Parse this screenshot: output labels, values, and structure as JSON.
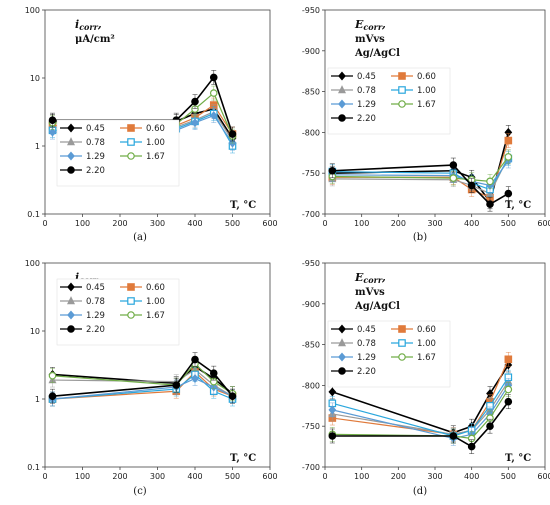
{
  "chart_data": [
    {
      "type": "line",
      "panel_label": "(a)",
      "y_label_lines": [
        "i",
        "corr",
        ",",
        "μA/cm²"
      ],
      "x_label": "T, °C",
      "y_scale": "log",
      "xlim": [
        0,
        600
      ],
      "ylim": [
        0.1,
        100
      ],
      "x_ticks": [
        "0",
        "100",
        "200",
        "300",
        "400",
        "500",
        "600"
      ],
      "y_ticks": [
        "0.1",
        "1",
        "10",
        "100"
      ],
      "legend_position": "bottom-center",
      "x": [
        20,
        350,
        400,
        450,
        500
      ],
      "series": [
        {
          "name": "0.45",
          "color": "#000000",
          "marker": "diamond",
          "values": [
            2.3,
            2.3,
            3.0,
            3.5,
            1.3
          ]
        },
        {
          "name": "0.60",
          "color": "#e07a3b",
          "marker": "square",
          "values": [
            2.0,
            2.0,
            2.6,
            4.0,
            1.5
          ]
        },
        {
          "name": "0.78",
          "color": "#9a9a9a",
          "marker": "triangle",
          "values": [
            1.9,
            1.9,
            2.4,
            3.2,
            1.2
          ]
        },
        {
          "name": "1.00",
          "color": "#2aa7dd",
          "marker": "square-open",
          "values": [
            1.7,
            1.8,
            2.3,
            3.0,
            1.0
          ]
        },
        {
          "name": "1.29",
          "color": "#5b9bd5",
          "marker": "diamond",
          "values": [
            1.6,
            1.7,
            2.2,
            2.8,
            1.1
          ]
        },
        {
          "name": "1.67",
          "color": "#70ad47",
          "marker": "circle-open",
          "values": [
            2.2,
            2.1,
            3.5,
            6.0,
            1.4
          ]
        },
        {
          "name": "2.20",
          "color": "#000000",
          "marker": "circle",
          "values": [
            2.4,
            2.4,
            4.5,
            10.2,
            1.5
          ]
        }
      ]
    },
    {
      "type": "line",
      "panel_label": "(b)",
      "y_label_lines": [
        "E",
        "corr",
        ",",
        "mVvs",
        "Ag/AgCl"
      ],
      "x_label": "T, °C",
      "y_scale": "linear-inverted",
      "xlim": [
        0,
        600
      ],
      "ylim": [
        -700,
        -950
      ],
      "x_ticks": [
        "0",
        "100",
        "200",
        "300",
        "400",
        "500",
        "600"
      ],
      "y_ticks": [
        "-950",
        "-900",
        "-850",
        "-800",
        "-750",
        "-700"
      ],
      "legend_position": "top-left",
      "x": [
        20,
        350,
        400,
        450,
        500
      ],
      "series": [
        {
          "name": "0.45",
          "color": "#000000",
          "marker": "diamond",
          "values": [
            -750,
            -753,
            -745,
            -715,
            -800
          ]
        },
        {
          "name": "0.60",
          "color": "#e07a3b",
          "marker": "square",
          "values": [
            -745,
            -745,
            -730,
            -720,
            -790
          ]
        },
        {
          "name": "0.78",
          "color": "#9a9a9a",
          "marker": "triangle",
          "values": [
            -743,
            -742,
            -735,
            -725,
            -770
          ]
        },
        {
          "name": "1.00",
          "color": "#2aa7dd",
          "marker": "square-open",
          "values": [
            -752,
            -750,
            -738,
            -730,
            -768
          ]
        },
        {
          "name": "1.29",
          "color": "#5b9bd5",
          "marker": "diamond",
          "values": [
            -748,
            -747,
            -740,
            -735,
            -765
          ]
        },
        {
          "name": "1.67",
          "color": "#70ad47",
          "marker": "circle-open",
          "values": [
            -746,
            -744,
            -742,
            -740,
            -770
          ]
        },
        {
          "name": "2.20",
          "color": "#000000",
          "marker": "circle",
          "values": [
            -753,
            -760,
            -735,
            -712,
            -725
          ]
        }
      ]
    },
    {
      "type": "line",
      "panel_label": "(c)",
      "y_label_lines": [
        "i",
        "corr",
        ",",
        "μA/cm²"
      ],
      "x_label": "T, °C",
      "y_scale": "log",
      "xlim": [
        0,
        600
      ],
      "ylim": [
        0.1,
        100
      ],
      "x_ticks": [
        "0",
        "100",
        "200",
        "300",
        "400",
        "500",
        "600"
      ],
      "y_ticks": [
        "0.1",
        "1",
        "10",
        "100"
      ],
      "legend_position": "top-center",
      "x": [
        20,
        350,
        400,
        450,
        500
      ],
      "series": [
        {
          "name": "0.45",
          "color": "#000000",
          "marker": "diamond",
          "values": [
            2.3,
            1.7,
            3.0,
            2.0,
            1.2
          ]
        },
        {
          "name": "0.60",
          "color": "#e07a3b",
          "marker": "square",
          "values": [
            1.0,
            1.3,
            2.5,
            1.4,
            1.1
          ]
        },
        {
          "name": "0.78",
          "color": "#9a9a9a",
          "marker": "triangle",
          "values": [
            1.9,
            1.8,
            2.7,
            1.6,
            1.1
          ]
        },
        {
          "name": "1.00",
          "color": "#2aa7dd",
          "marker": "square-open",
          "values": [
            1.0,
            1.4,
            2.3,
            1.3,
            1.0
          ]
        },
        {
          "name": "1.29",
          "color": "#5b9bd5",
          "marker": "diamond",
          "values": [
            1.0,
            1.5,
            2.0,
            1.5,
            1.1
          ]
        },
        {
          "name": "1.67",
          "color": "#70ad47",
          "marker": "circle-open",
          "values": [
            2.2,
            1.6,
            3.3,
            1.8,
            1.2
          ]
        },
        {
          "name": "2.20",
          "color": "#000000",
          "marker": "circle",
          "values": [
            1.1,
            1.6,
            3.8,
            2.4,
            1.1
          ]
        }
      ]
    },
    {
      "type": "line",
      "panel_label": "(d)",
      "y_label_lines": [
        "E",
        "corr",
        ",",
        "mVvs",
        "Ag/AgCl"
      ],
      "x_label": "T, °C",
      "y_scale": "linear-inverted",
      "xlim": [
        0,
        600
      ],
      "ylim": [
        -700,
        -950
      ],
      "x_ticks": [
        "0",
        "100",
        "200",
        "300",
        "400",
        "500",
        "600"
      ],
      "y_ticks": [
        "-950",
        "-900",
        "-850",
        "-800",
        "-750",
        "-700"
      ],
      "legend_position": "top-left",
      "x": [
        20,
        350,
        400,
        450,
        500
      ],
      "series": [
        {
          "name": "0.45",
          "color": "#000000",
          "marker": "diamond",
          "values": [
            -792,
            -742,
            -750,
            -790,
            -825
          ]
        },
        {
          "name": "0.60",
          "color": "#e07a3b",
          "marker": "square",
          "values": [
            -760,
            -740,
            -745,
            -780,
            -832
          ]
        },
        {
          "name": "0.78",
          "color": "#9a9a9a",
          "marker": "triangle",
          "values": [
            -765,
            -740,
            -745,
            -770,
            -805
          ]
        },
        {
          "name": "1.00",
          "color": "#2aa7dd",
          "marker": "square-open",
          "values": [
            -778,
            -738,
            -745,
            -775,
            -810
          ]
        },
        {
          "name": "1.29",
          "color": "#5b9bd5",
          "marker": "diamond",
          "values": [
            -770,
            -735,
            -740,
            -765,
            -800
          ]
        },
        {
          "name": "1.67",
          "color": "#70ad47",
          "marker": "circle-open",
          "values": [
            -740,
            -738,
            -735,
            -760,
            -795
          ]
        },
        {
          "name": "2.20",
          "color": "#000000",
          "marker": "circle",
          "values": [
            -738,
            -738,
            -725,
            -750,
            -780
          ]
        }
      ]
    }
  ]
}
